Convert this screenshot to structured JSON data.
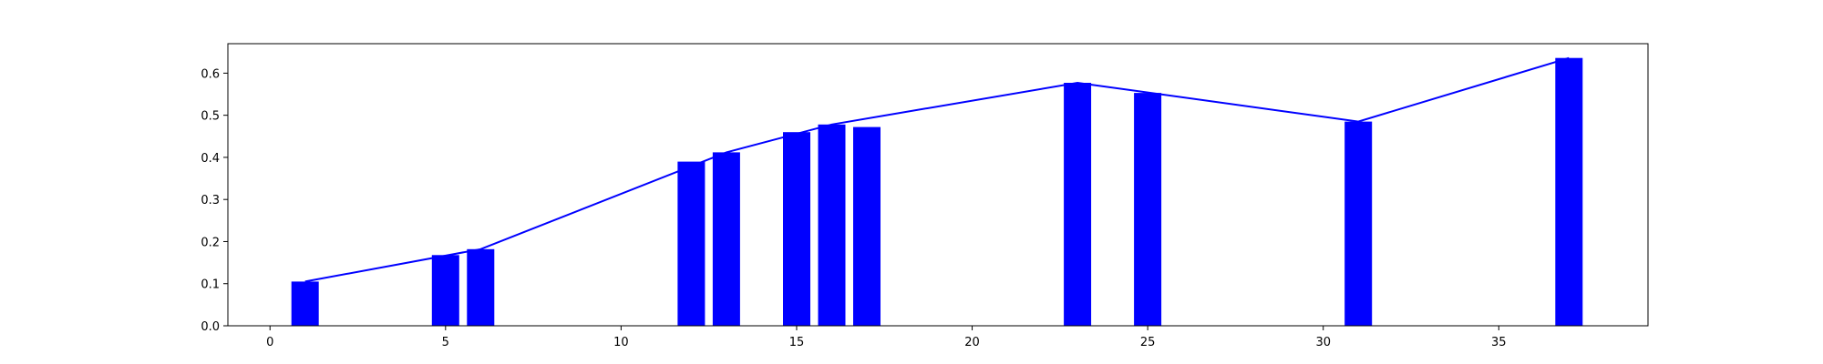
{
  "chart_data": {
    "type": "bar",
    "title": "",
    "xlabel": "",
    "ylabel": "",
    "xlim": [
      -1.2,
      39.25
    ],
    "ylim": [
      0,
      0.67
    ],
    "grid": false,
    "bar_color": "#0000ff",
    "line_color": "#0000ff",
    "x_ticks": [
      0,
      5,
      10,
      15,
      20,
      25,
      30,
      35
    ],
    "y_ticks": [
      "0.0",
      "0.1",
      "0.2",
      "0.3",
      "0.4",
      "0.5",
      "0.6"
    ],
    "bars": [
      {
        "x": 1,
        "value": 0.105
      },
      {
        "x": 5,
        "value": 0.168
      },
      {
        "x": 6,
        "value": 0.182
      },
      {
        "x": 12,
        "value": 0.39
      },
      {
        "x": 13,
        "value": 0.412
      },
      {
        "x": 15,
        "value": 0.46
      },
      {
        "x": 16,
        "value": 0.478
      },
      {
        "x": 17,
        "value": 0.472
      },
      {
        "x": 23,
        "value": 0.577
      },
      {
        "x": 25,
        "value": 0.553
      },
      {
        "x": 31,
        "value": 0.485
      },
      {
        "x": 37,
        "value": 0.636
      }
    ],
    "line": [
      {
        "x": 1,
        "y": 0.105
      },
      {
        "x": 6,
        "y": 0.182
      },
      {
        "x": 13,
        "y": 0.412
      },
      {
        "x": 16,
        "y": 0.478
      },
      {
        "x": 23,
        "y": 0.577
      },
      {
        "x": 31,
        "y": 0.485
      },
      {
        "x": 37,
        "y": 0.636
      }
    ]
  }
}
